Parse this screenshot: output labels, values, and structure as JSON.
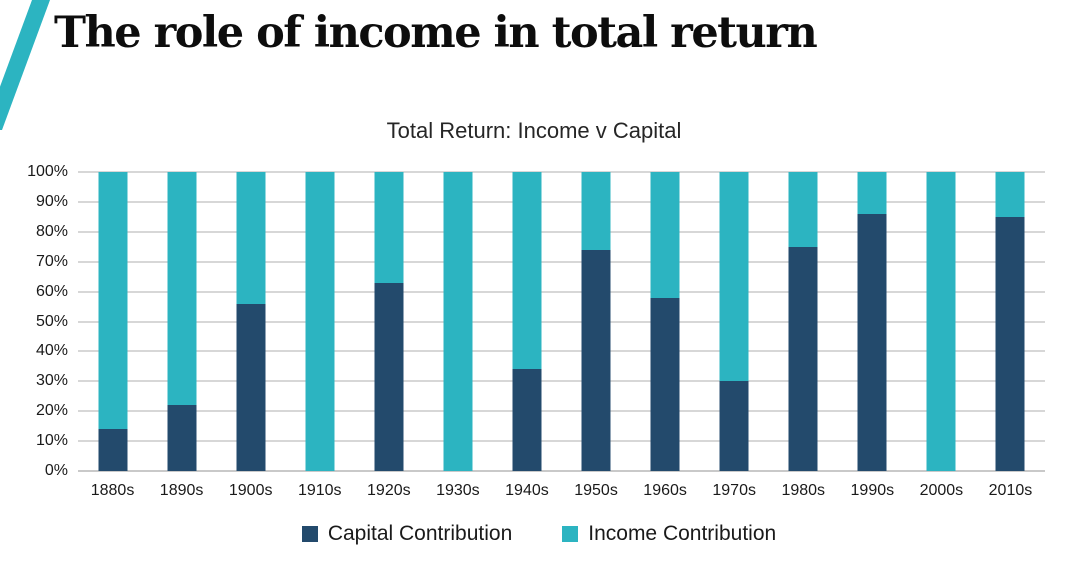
{
  "page": {
    "title": "The role of income in total return"
  },
  "chart_data": {
    "type": "bar",
    "stacked": true,
    "title": "Total Return: Income v Capital",
    "categories": [
      "1880s",
      "1890s",
      "1900s",
      "1910s",
      "1920s",
      "1930s",
      "1940s",
      "1950s",
      "1960s",
      "1970s",
      "1980s",
      "1990s",
      "2000s",
      "2010s"
    ],
    "series": [
      {
        "name": "Capital Contribution",
        "color": "#234A6C",
        "values": [
          14,
          22,
          56,
          0,
          63,
          0,
          34,
          74,
          58,
          30,
          75,
          86,
          0,
          85
        ]
      },
      {
        "name": "Income Contribution",
        "color": "#2CB4C1",
        "values": [
          86,
          78,
          44,
          100,
          37,
          100,
          66,
          26,
          42,
          70,
          25,
          14,
          100,
          15
        ]
      }
    ],
    "xlabel": "",
    "ylabel": "",
    "ylim": [
      0,
      100
    ],
    "ytick_step": 10,
    "ytick_labels": [
      "0%",
      "10%",
      "20%",
      "30%",
      "40%",
      "50%",
      "60%",
      "70%",
      "80%",
      "90%",
      "100%"
    ],
    "grid": true,
    "legend_position": "bottom"
  },
  "colors": {
    "accent_stripe": "#2CB4C1",
    "capital": "#234A6C",
    "income": "#2CB4C1",
    "gridline": "#D7D7D7",
    "baseline": "#C9C9C9",
    "title_text": "#0D0D0D",
    "axis_text": "#1A1A1A"
  }
}
